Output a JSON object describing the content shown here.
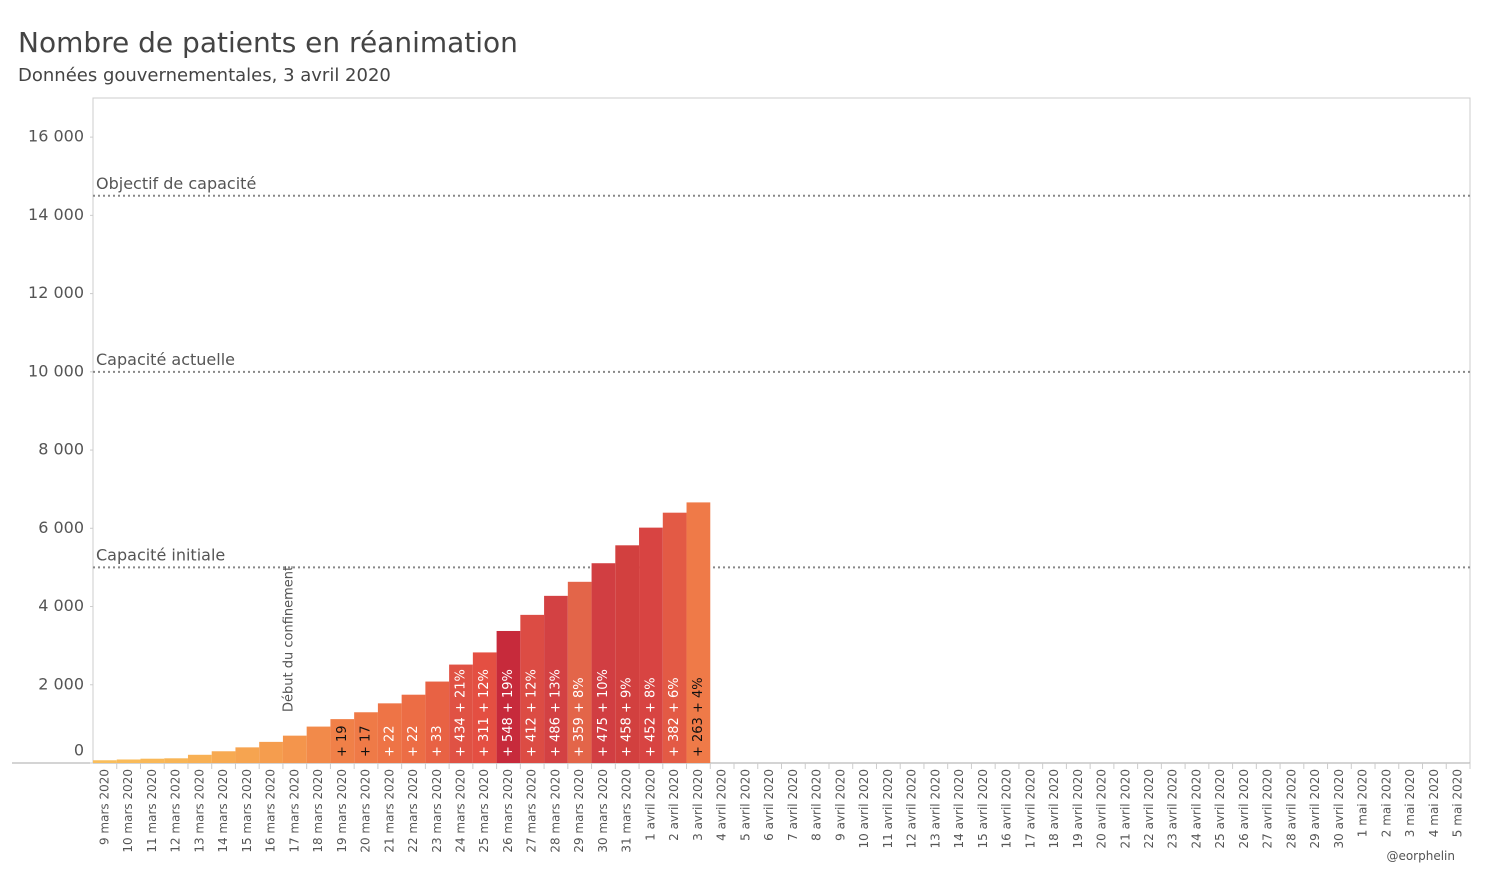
{
  "chart_data": {
    "type": "bar",
    "title": "Nombre de patients en réanimation",
    "subtitle": "Données gouvernementales, 3 avril 2020",
    "credit": "@eorphelin",
    "categories": [
      "9 mars 2020",
      "10 mars 2020",
      "11 mars 2020",
      "12 mars 2020",
      "13 mars 2020",
      "14 mars 2020",
      "15 mars 2020",
      "16 mars 2020",
      "17 mars 2020",
      "18 mars 2020",
      "19 mars 2020",
      "20 mars 2020",
      "21 mars 2020",
      "22 mars 2020",
      "23 mars 2020",
      "24 mars 2020",
      "25 mars 2020",
      "26 mars 2020",
      "27 mars 2020",
      "28 mars 2020",
      "29 mars 2020",
      "30 mars 2020",
      "31 mars 2020",
      "1 avril 2020",
      "2 avril 2020",
      "3 avril 2020",
      "4 avril 2020",
      "5 avril 2020",
      "6 avril 2020",
      "7 avril 2020",
      "8 avril 2020",
      "9 avril 2020",
      "10 avril 2020",
      "11 avril 2020",
      "12 avril 2020",
      "13 avril 2020",
      "14 avril 2020",
      "15 avril 2020",
      "16 avril 2020",
      "17 avril 2020",
      "18 avril 2020",
      "19 avril 2020",
      "20 avril 2020",
      "21 avril 2020",
      "22 avril 2020",
      "23 avril 2020",
      "24 avril 2020",
      "25 avril 2020",
      "26 avril 2020",
      "27 avril 2020",
      "28 avril 2020",
      "29 avril 2020",
      "30 avril 2020",
      "1 mai 2020",
      "2 mai 2020",
      "3 mai 2020",
      "4 mai 2020",
      "5 mai 2020"
    ],
    "values": [
      70,
      90,
      110,
      120,
      210,
      300,
      400,
      540,
      699,
      931,
      1122,
      1297,
      1525,
      1746,
      2082,
      2516,
      2827,
      3375,
      3787,
      4273,
      4632,
      5107,
      5565,
      6017,
      6399,
      6662,
      null,
      null,
      null,
      null,
      null,
      null,
      null,
      null,
      null,
      null,
      null,
      null,
      null,
      null,
      null,
      null,
      null,
      null,
      null,
      null,
      null,
      null,
      null,
      null,
      null,
      null,
      null,
      null,
      null,
      null,
      null,
      null
    ],
    "colors": [
      "#f9be5c",
      "#f9bb5a",
      "#f9b858",
      "#f8b556",
      "#f8b054",
      "#f7aa52",
      "#f6a450",
      "#f59d4e",
      "#f4954c",
      "#f28a4a",
      "#f08048",
      "#ef7a47",
      "#ee7446",
      "#ec6d45",
      "#e86244",
      "#e05244",
      "#e44f42",
      "#c72a3b",
      "#dc4c44",
      "#d34143",
      "#e36549",
      "#d13e42",
      "#d2403f",
      "#d84442",
      "#e35a45",
      "#ef7a48",
      null,
      null,
      null,
      null,
      null,
      null,
      null,
      null,
      null,
      null,
      null,
      null,
      null,
      null,
      null,
      null,
      null,
      null,
      null,
      null,
      null,
      null,
      null,
      null,
      null,
      null,
      null,
      null,
      null,
      null,
      null,
      null
    ],
    "bar_labels": [
      null,
      null,
      null,
      null,
      null,
      null,
      null,
      null,
      null,
      null,
      "+ 19",
      "+ 17",
      "+ 22",
      "+ 22",
      "+ 33",
      "+ 434 + 21%",
      "+ 311 + 12%",
      "+ 548 + 19%",
      "+ 412 + 12%",
      "+ 486 + 13%",
      "+ 359 + 8%",
      "+ 475 + 10%",
      "+ 458 + 9%",
      "+ 452 + 8%",
      "+ 382 + 6%",
      "+ 263 + 4%",
      null,
      null,
      null,
      null,
      null,
      null,
      null,
      null,
      null,
      null,
      null,
      null,
      null,
      null,
      null,
      null,
      null,
      null,
      null,
      null,
      null,
      null,
      null,
      null,
      null,
      null,
      null,
      null,
      null,
      null,
      null,
      null
    ],
    "ylim": [
      0,
      17000
    ],
    "yticks": [
      0,
      {
        "value": 2000,
        "label": "2 000"
      },
      {
        "value": 4000,
        "label": "4 000"
      },
      {
        "value": 6000,
        "label": "6 000"
      },
      {
        "value": 8000,
        "label": "8 000"
      },
      {
        "value": 10000,
        "label": "10 000"
      },
      {
        "value": 12000,
        "label": "12 000"
      },
      {
        "value": 14000,
        "label": "14 000"
      },
      {
        "value": 16000,
        "label": "16 000"
      }
    ],
    "reference_lines": [
      {
        "value": 14500,
        "label": "Objectif de capacité"
      },
      {
        "value": 10000,
        "label": "Capacité actuelle"
      },
      {
        "value": 5000,
        "label": "Capacité initiale"
      }
    ],
    "event": {
      "index": 8,
      "label": "Début du confinement"
    }
  }
}
